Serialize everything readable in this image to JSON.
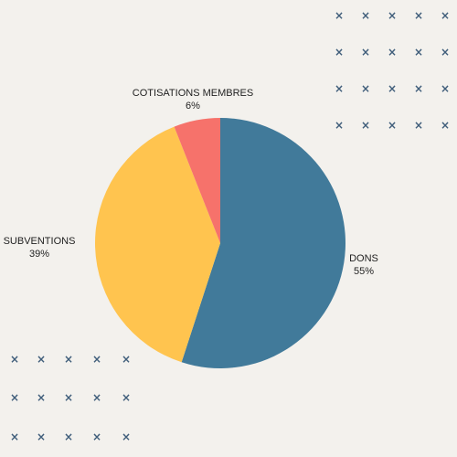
{
  "chart_data": {
    "type": "pie",
    "title": "",
    "start_angle_deg": 0,
    "direction": "clockwise",
    "slices": [
      {
        "label": "DONS",
        "percent_label": "55%",
        "value": 55,
        "color": "#417a9a"
      },
      {
        "label": "SUBVENTIONS",
        "percent_label": "39%",
        "value": 39,
        "color": "#ffc44f"
      },
      {
        "label": "COTISATIONS MEMBRES",
        "percent_label": "6%",
        "value": 6,
        "color": "#f6726b"
      }
    ],
    "legend": "none"
  },
  "decoration": {
    "mark_glyph": "×",
    "mark_color": "#3f5d7a",
    "background": "#f3f1ed"
  }
}
